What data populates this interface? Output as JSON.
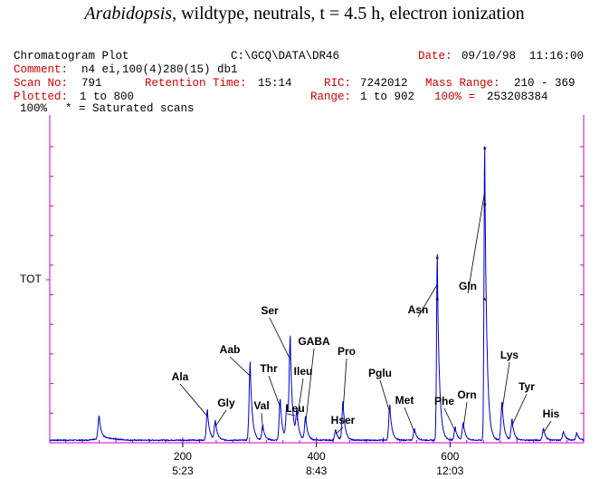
{
  "title": {
    "organism": "Arabidopsis",
    "rest": ", wildtype, neutrals, t = 4.5 h, electron ionization"
  },
  "header": {
    "plot_name": "Chromatogram Plot",
    "path": "C:\\GCQ\\DATA\\DR46",
    "date_label": "Date:",
    "date_value": "09/10/98  11:16:00",
    "comment_label": "Comment:",
    "comment_value": "n4 ei,100(4)280(15) db1",
    "scan_label": "Scan No:",
    "scan_value": "791",
    "rt_label": "Retention Time:",
    "rt_value": "15:14",
    "ric_label": "RIC:",
    "ric_value": "7242012",
    "mass_label": "Mass Range:",
    "mass_value": "210 - 369",
    "plotted_label": "Plotted:",
    "plotted_value": "1 to 800",
    "range_label": "Range:",
    "range_value": "1 to 902",
    "full_label": "100% =",
    "full_value": "253208384",
    "pct_label": "100%",
    "saturated_note": "* = Saturated scans"
  },
  "chart_data": {
    "type": "line",
    "y_axis_label": "TOT",
    "xlim": [
      1,
      800
    ],
    "ylim": [
      0,
      100
    ],
    "x_ticks": [
      {
        "scan": 200,
        "time": "5:23"
      },
      {
        "scan": 400,
        "time": "8:43"
      },
      {
        "scan": 600,
        "time": "12:03"
      }
    ],
    "peaks": [
      {
        "name": "",
        "x": 75,
        "y": 8
      },
      {
        "name": "Ala",
        "x": 237,
        "y": 10.5
      },
      {
        "name": "Gly",
        "x": 249,
        "y": 6.5
      },
      {
        "name": "Aab",
        "x": 301,
        "y": 26.5
      },
      {
        "name": "Val",
        "x": 320,
        "y": 5
      },
      {
        "name": "Thr",
        "x": 346,
        "y": 14
      },
      {
        "name": "Leu",
        "x": 356,
        "y": 11.5
      },
      {
        "name": "Ser",
        "x": 361,
        "y": 33
      },
      {
        "name": "Ileu",
        "x": 371,
        "y": 9
      },
      {
        "name": "GABA",
        "x": 384,
        "y": 8
      },
      {
        "name": "Hser",
        "x": 429,
        "y": 3.5
      },
      {
        "name": "Pro",
        "x": 440,
        "y": 13
      },
      {
        "name": "Pglu",
        "x": 510,
        "y": 12
      },
      {
        "name": "Met",
        "x": 547,
        "y": 4
      },
      {
        "name": "Asn",
        "x": 581,
        "y": 63
      },
      {
        "name": "Phe",
        "x": 608,
        "y": 4.5
      },
      {
        "name": "Orn",
        "x": 620,
        "y": 6
      },
      {
        "name": "Gln",
        "x": 652,
        "y": 100
      },
      {
        "name": "Lys",
        "x": 678,
        "y": 13
      },
      {
        "name": "Tyr",
        "x": 693,
        "y": 7
      },
      {
        "name": "His",
        "x": 740,
        "y": 4
      },
      {
        "name": "",
        "x": 770,
        "y": 3
      },
      {
        "name": "",
        "x": 790,
        "y": 2.5
      }
    ],
    "saturated_marks": [
      {
        "x": 581,
        "y": 63
      },
      {
        "x": 581,
        "y": 49
      },
      {
        "x": 652,
        "y": 100
      },
      {
        "x": 652,
        "y": 81
      },
      {
        "x": 652,
        "y": 49
      }
    ],
    "colors": {
      "trace": "#0000cc",
      "axis": "#cc00cc",
      "label_line": "#000000"
    }
  }
}
